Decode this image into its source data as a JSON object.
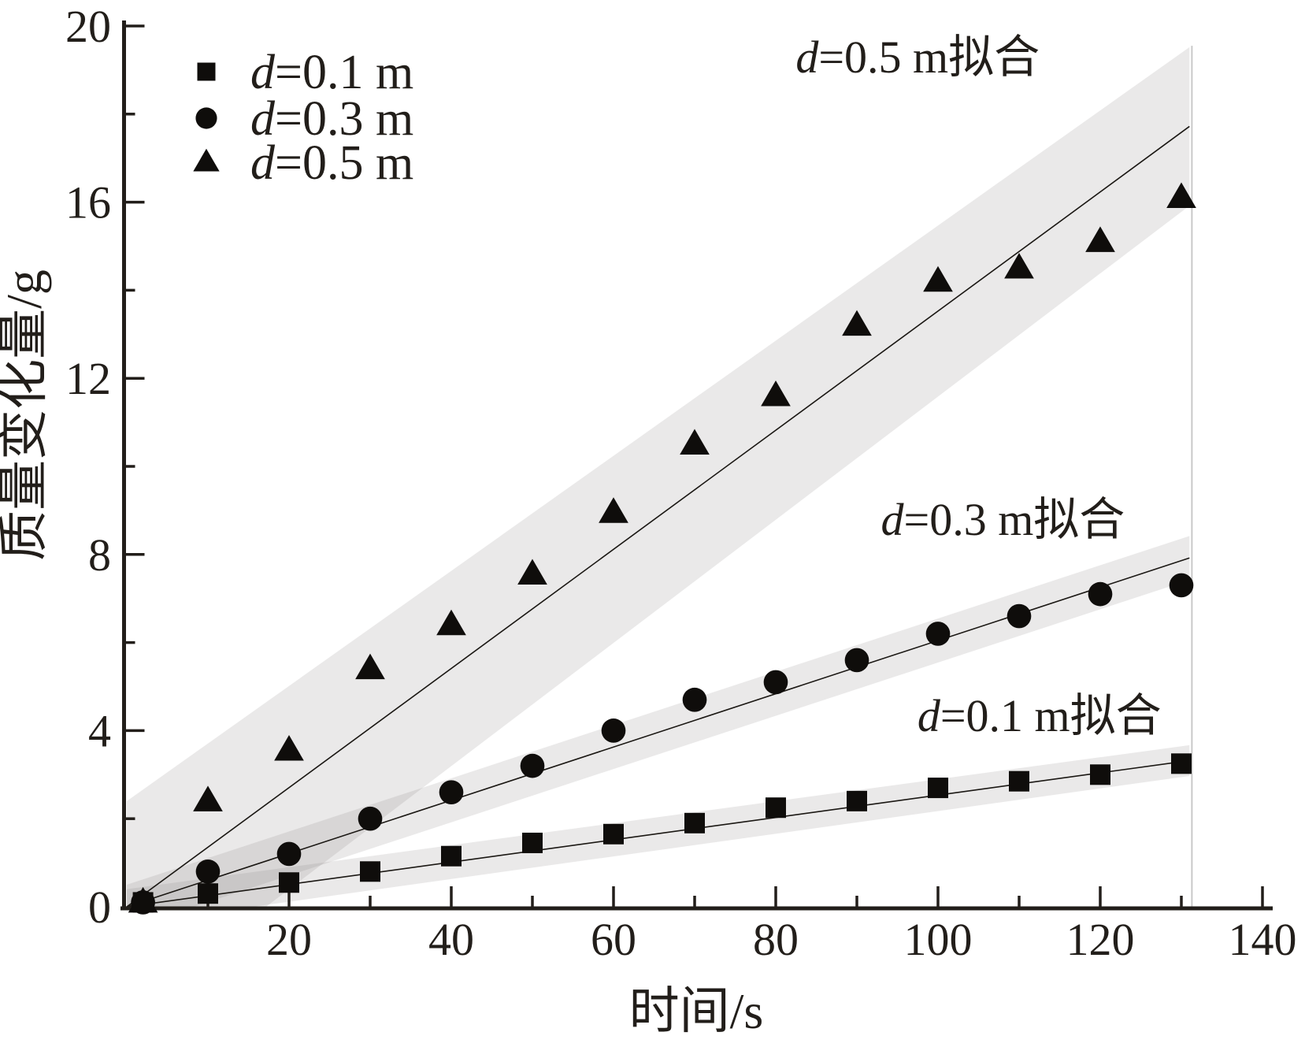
{
  "chart_data": {
    "type": "scatter",
    "title": "",
    "xlabel": "时间/s",
    "ylabel": "质量变化量/g",
    "xlim": [
      0,
      140
    ],
    "ylim": [
      0,
      20
    ],
    "grid": false,
    "legend_position": "top-left-inside",
    "x_ticks": {
      "major": [
        20,
        40,
        60,
        80,
        100,
        120,
        140
      ],
      "minor": [
        10,
        30,
        50,
        70,
        90,
        110,
        130
      ]
    },
    "y_ticks": {
      "major": [
        0,
        4,
        8,
        12,
        16,
        20
      ],
      "minor": [
        2,
        6,
        10,
        14,
        18
      ]
    },
    "x": [
      2,
      10,
      20,
      30,
      40,
      50,
      60,
      70,
      80,
      90,
      100,
      110,
      120,
      130
    ],
    "series": [
      {
        "name": "d=0.1 m",
        "marker": "square",
        "values": [
          0.1,
          0.3,
          0.55,
          0.8,
          1.15,
          1.45,
          1.65,
          1.9,
          2.25,
          2.4,
          2.7,
          2.85,
          3.0,
          3.25
        ],
        "fit": {
          "label": "d=0.1 m拟合",
          "line_start": [
            0,
            0
          ],
          "line_end": [
            131,
            3.32
          ],
          "band_half_width_start": 0.4,
          "band_half_width_end": 0.35,
          "label_anchor": [
            112.5,
            4.35
          ]
        }
      },
      {
        "name": "d=0.3 m",
        "marker": "circle",
        "values": [
          0.1,
          0.8,
          1.2,
          2.0,
          2.6,
          3.2,
          4.0,
          4.7,
          5.1,
          5.6,
          6.2,
          6.6,
          7.1,
          7.3
        ],
        "fit": {
          "label": "d=0.3 m拟合",
          "line_start": [
            0,
            0
          ],
          "line_end": [
            131,
            7.92
          ],
          "band_half_width_start": 0.5,
          "band_half_width_end": 0.5,
          "label_anchor": [
            108,
            8.8
          ]
        }
      },
      {
        "name": "d=0.5 m",
        "marker": "triangle",
        "values": [
          0.1,
          2.4,
          3.55,
          5.4,
          6.4,
          7.55,
          8.95,
          10.5,
          11.6,
          13.2,
          14.2,
          14.5,
          15.1,
          16.1
        ],
        "fit": {
          "label": "d=0.5 m拟合",
          "line_start": [
            0,
            0
          ],
          "line_end": [
            131,
            17.72
          ],
          "band_half_width_start": 2.4,
          "band_half_width_end": 1.8,
          "label_anchor": [
            97.5,
            19.3
          ]
        }
      }
    ],
    "legend": [
      {
        "label": "d=0.1 m",
        "marker": "square"
      },
      {
        "label": "d=0.3 m",
        "marker": "circle"
      },
      {
        "label": "d=0.5 m",
        "marker": "triangle"
      }
    ],
    "faint_vertical_line_x": 131.3,
    "colors": {
      "marker": "#0f0d0b",
      "axis": "#221e1a",
      "text": "#221e1a",
      "fit_line": "#1a1713",
      "band_fill": "rgba(128,125,122,0.17)",
      "faint_line": "#c8c8c8",
      "background": "#ffffff"
    }
  }
}
